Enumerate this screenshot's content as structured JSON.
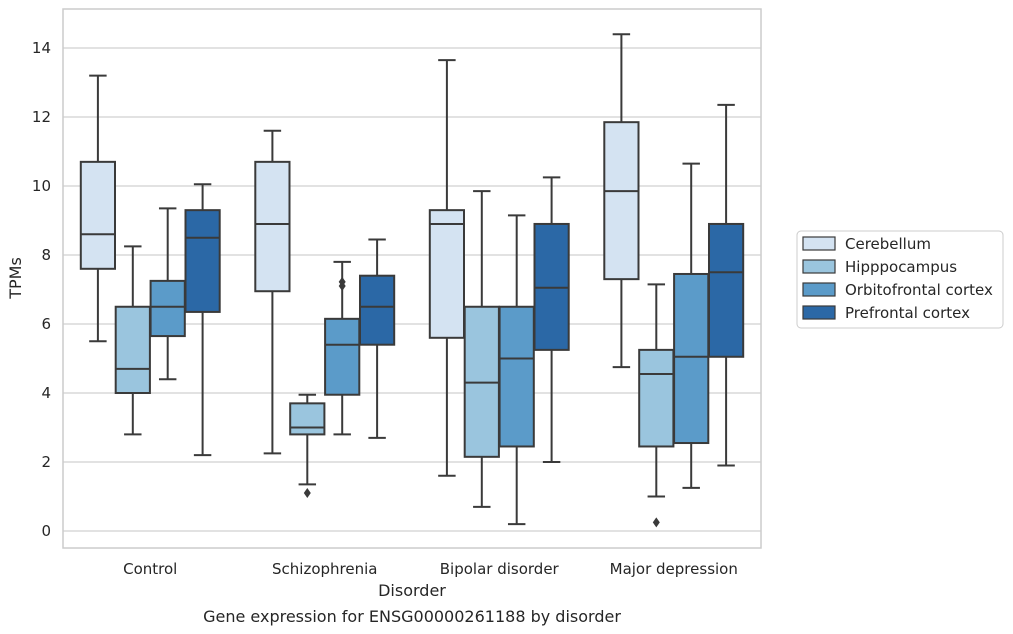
{
  "chart_data": {
    "type": "box",
    "xlabel": "Disorder",
    "ylabel": "TPMs",
    "caption": "Gene expression for ENSG00000261188 by disorder",
    "categories": [
      "Control",
      "Schizophrenia",
      "Bipolar disorder",
      "Major depression"
    ],
    "ylim": [
      -0.5,
      15.2
    ],
    "yticks": [
      0,
      2,
      4,
      6,
      8,
      10,
      12,
      14
    ],
    "grid": true,
    "legend_position": "right",
    "colors": {
      "Cerebellum": "#d4e3f2",
      "Hipppocampus": "#9ac5de",
      "Orbitofrontal cortex": "#5b9bc9",
      "Prefrontal cortex": "#2b68a6",
      "edge": "#3a3a3a",
      "grid": "#d0d0d0",
      "frame": "#cccccc"
    },
    "series": [
      {
        "name": "Cerebellum",
        "boxes": [
          {
            "whislo": 5.5,
            "q1": 7.6,
            "med": 8.6,
            "q3": 10.7,
            "whishi": 13.2,
            "fliers": []
          },
          {
            "whislo": 2.25,
            "q1": 6.95,
            "med": 8.9,
            "q3": 10.7,
            "whishi": 11.6,
            "fliers": []
          },
          {
            "whislo": 1.6,
            "q1": 5.6,
            "med": 8.9,
            "q3": 9.3,
            "whishi": 13.65,
            "fliers": []
          },
          {
            "whislo": 4.75,
            "q1": 7.3,
            "med": 9.85,
            "q3": 11.85,
            "whishi": 14.4,
            "fliers": []
          }
        ]
      },
      {
        "name": "Hipppocampus",
        "boxes": [
          {
            "whislo": 2.8,
            "q1": 4.0,
            "med": 4.7,
            "q3": 6.5,
            "whishi": 8.25,
            "fliers": []
          },
          {
            "whislo": 1.35,
            "q1": 2.8,
            "med": 3.0,
            "q3": 3.7,
            "whishi": 3.95,
            "fliers": [
              1.1
            ]
          },
          {
            "whislo": 0.7,
            "q1": 2.15,
            "med": 4.3,
            "q3": 6.5,
            "whishi": 9.85,
            "fliers": []
          },
          {
            "whislo": 1.0,
            "q1": 2.45,
            "med": 4.55,
            "q3": 5.25,
            "whishi": 7.15,
            "fliers": [
              0.25
            ]
          }
        ]
      },
      {
        "name": "Orbitofrontal cortex",
        "boxes": [
          {
            "whislo": 4.4,
            "q1": 5.65,
            "med": 6.5,
            "q3": 7.25,
            "whishi": 9.35,
            "fliers": []
          },
          {
            "whislo": 2.8,
            "q1": 3.95,
            "med": 5.4,
            "q3": 6.15,
            "whishi": 7.8,
            "fliers": [
              7.1,
              7.22
            ]
          },
          {
            "whislo": 0.2,
            "q1": 2.45,
            "med": 5.0,
            "q3": 6.5,
            "whishi": 9.15,
            "fliers": []
          },
          {
            "whislo": 1.25,
            "q1": 2.55,
            "med": 5.05,
            "q3": 7.45,
            "whishi": 10.65,
            "fliers": []
          }
        ]
      },
      {
        "name": "Prefrontal cortex",
        "boxes": [
          {
            "whislo": 2.2,
            "q1": 6.35,
            "med": 8.5,
            "q3": 9.3,
            "whishi": 10.05,
            "fliers": []
          },
          {
            "whislo": 2.7,
            "q1": 5.4,
            "med": 6.5,
            "q3": 7.4,
            "whishi": 8.45,
            "fliers": []
          },
          {
            "whislo": 2.0,
            "q1": 5.25,
            "med": 7.05,
            "q3": 8.9,
            "whishi": 10.25,
            "fliers": []
          },
          {
            "whislo": 1.9,
            "q1": 5.05,
            "med": 7.5,
            "q3": 8.9,
            "whishi": 12.35,
            "fliers": []
          }
        ]
      }
    ]
  }
}
